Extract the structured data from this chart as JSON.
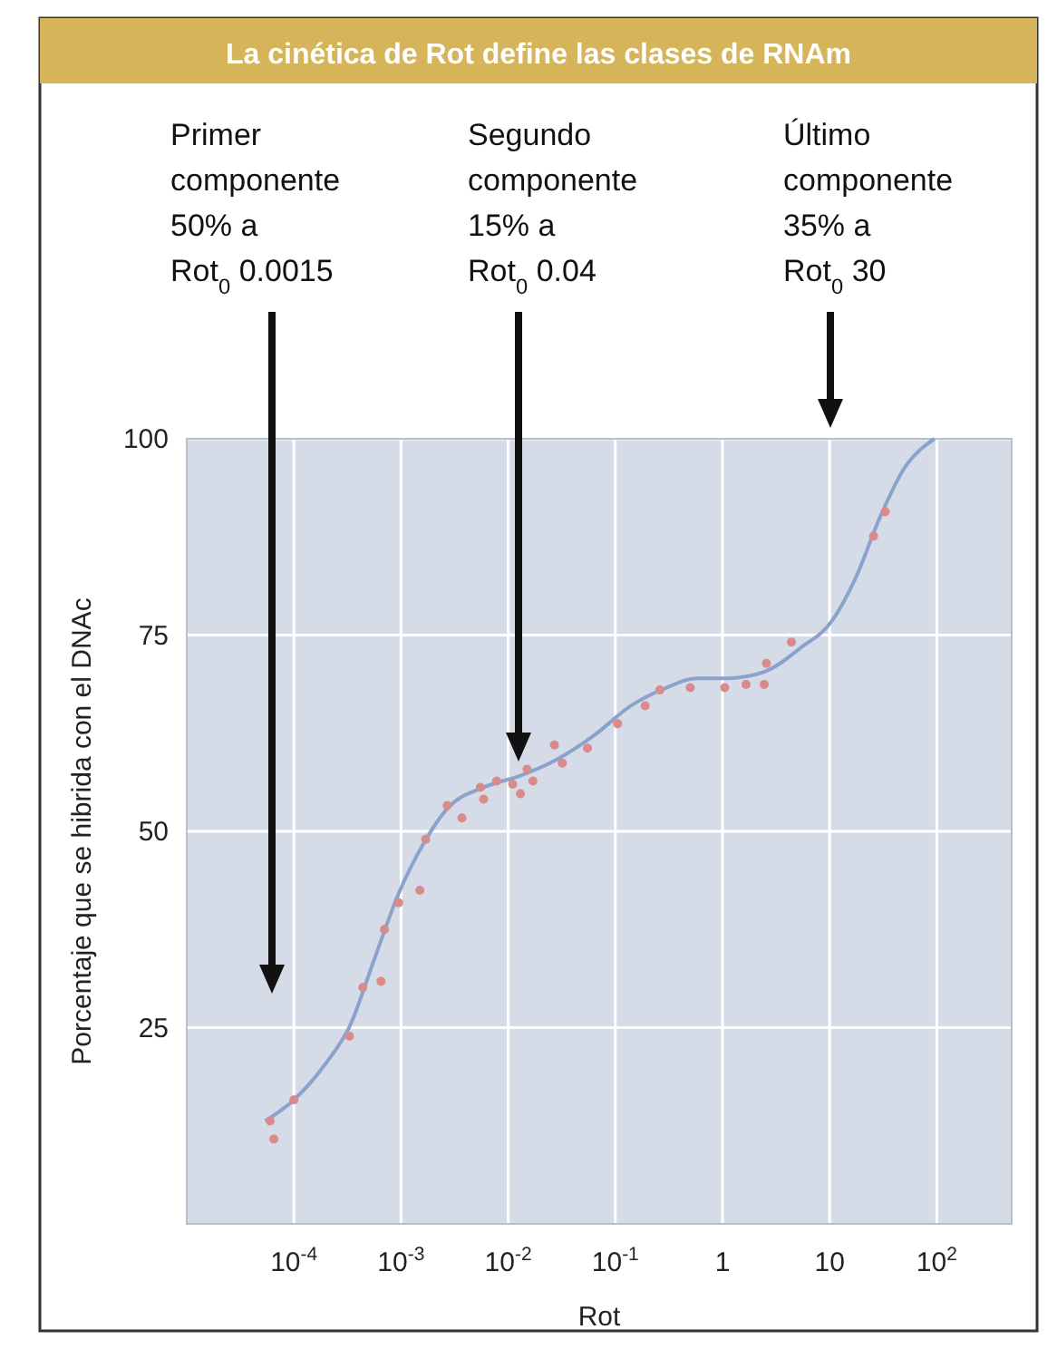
{
  "chart_data": {
    "type": "scatter",
    "title": "La cinética de Rot define las clases de RNAm",
    "xlabel": "Rot",
    "ylabel": "Porcentaje que se hibrida con el DNAc",
    "annotations": [
      "Primer\ncomponente\n50% a\nRot$_{0}$ 0.0015",
      "Segundo\ncomponente\n15% a\nRot$_{0}$ 0.04",
      "Último\ncomponente\n35% a\nRot$_{0}$ 30"
    ],
    "log": "x",
    "xlim": [
      1e-05,
      500
    ],
    "ylim": [
      0,
      100
    ],
    "xticks": [
      {
        "value": 0.0001,
        "label": "10$^{-4}$"
      },
      {
        "value": 0.001,
        "label": "10$^{-3}$"
      },
      {
        "value": 0.01,
        "label": "10$^{-2}$"
      },
      {
        "value": 0.1,
        "label": "10$^{-1}$"
      },
      1,
      10,
      {
        "value": 100,
        "label": "10$^{2}$"
      }
    ],
    "yticks": [
      25,
      50,
      75,
      100
    ],
    "grid": true,
    "legend": false,
    "series": [
      {
        "color": "#d98a8a",
        "marker": "circle",
        "x": [
          6e-05,
          6.5e-05,
          0.0001,
          0.00033,
          0.00044,
          0.00065,
          0.0007,
          0.00095,
          0.0015,
          0.0017,
          0.0027,
          0.0037,
          0.0055,
          0.0059,
          0.0078,
          0.011,
          0.013,
          0.015,
          0.017,
          0.027,
          0.032,
          0.055,
          0.105,
          0.19,
          0.26,
          0.5,
          1.05,
          1.66,
          2.45,
          2.57,
          4.4,
          25.7,
          33
        ],
        "values": [
          13.1,
          10.8,
          15.8,
          23.9,
          30.1,
          30.9,
          37.5,
          40.9,
          42.5,
          49,
          53.3,
          51.7,
          55.6,
          54.1,
          56.4,
          56,
          54.8,
          57.9,
          56.4,
          61,
          58.7,
          60.6,
          63.7,
          66,
          68,
          68.3,
          68.3,
          68.7,
          68.7,
          71.4,
          74.1,
          87.6,
          90.7
        ]
      },
      {
        "type": "line",
        "color": "#8aa2cc",
        "marker": "none",
        "line_style": "solid",
        "x": [
          5.4e-05,
          0.0001,
          0.0002,
          0.00033,
          0.00056,
          0.00095,
          0.0016,
          0.0027,
          0.0059,
          0.013,
          0.028,
          0.063,
          0.14,
          0.3,
          0.58,
          1.12,
          2.45,
          5.4,
          10.5,
          17.4,
          29.5,
          49,
          95
        ],
        "values": [
          13.1,
          15.8,
          20.5,
          25.1,
          33.6,
          42.1,
          48.3,
          52.9,
          55.6,
          57.1,
          59.1,
          62.2,
          66,
          68.3,
          69.5,
          69.5,
          70.3,
          73.4,
          76.8,
          82.2,
          90,
          96.1,
          100
        ]
      }
    ]
  }
}
